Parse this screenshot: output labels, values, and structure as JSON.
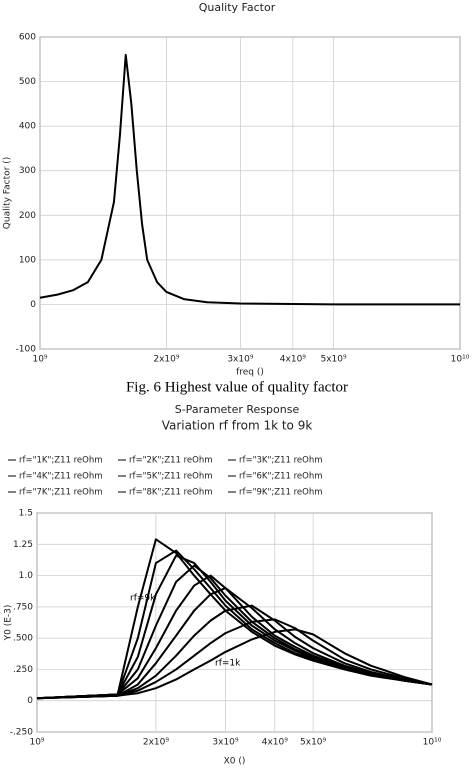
{
  "caption": "Fig. 6   Highest value of quality factor",
  "chart_data": [
    {
      "type": "line",
      "title": "Quality Factor",
      "xlabel": "freq ()",
      "ylabel": "Quality Factor ()",
      "xscale": "log",
      "grid": true,
      "color": "#000000",
      "x": [
        1000000000,
        1100000000,
        1200000000,
        1300000000,
        1400000000,
        1500000000,
        1550000000,
        1600000000,
        1650000000,
        1700000000,
        1750000000,
        1800000000,
        1900000000,
        2000000000,
        2200000000,
        2500000000,
        3000000000,
        4000000000,
        5000000000,
        7000000000,
        10000000000
      ],
      "values": [
        15,
        22,
        32,
        50,
        100,
        230,
        380,
        560,
        450,
        300,
        180,
        100,
        50,
        28,
        12,
        5,
        2,
        1,
        0,
        0,
        0
      ],
      "xlim": [
        1000000000,
        10000000000
      ],
      "xticks": [
        {
          "value": 1000000000,
          "label": "10⁹"
        },
        {
          "value": 2000000000,
          "label": "2x10⁹"
        },
        {
          "value": 3000000000,
          "label": "3x10⁹"
        },
        {
          "value": 4000000000,
          "label": "4x10⁹"
        },
        {
          "value": 5000000000,
          "label": "5x10⁹"
        },
        {
          "value": 10000000000,
          "label": "10¹⁰"
        }
      ],
      "ylim": [
        -100,
        600
      ],
      "yticks": [
        -100,
        0,
        100,
        200,
        300,
        400,
        500,
        600
      ]
    },
    {
      "type": "line",
      "title": "S-Parameter Response",
      "subtitle": "Variation rf from 1k to 9k",
      "xlabel": "X0 ()",
      "ylabel": "Y0 (E-3)",
      "xscale": "log",
      "grid": true,
      "annotations": [
        "rf=9k",
        "rf=1k"
      ],
      "x": [
        1000000000,
        1600000000,
        1800000000,
        2000000000,
        2250000000,
        2500000000,
        2750000000,
        3000000000,
        3500000000,
        4000000000,
        4500000000,
        5000000000,
        6000000000,
        7000000000,
        8500000000,
        10000000000
      ],
      "series": [
        {
          "name": "rf=\"1K\";Z11 reOhm",
          "color": "#000000",
          "values": [
            0.02,
            0.04,
            0.06,
            0.1,
            0.17,
            0.25,
            0.32,
            0.39,
            0.49,
            0.55,
            0.57,
            0.53,
            0.38,
            0.28,
            0.19,
            0.13
          ]
        },
        {
          "name": "rf=\"2K\";Z11 reOhm",
          "color": "#000000",
          "values": [
            0.02,
            0.04,
            0.08,
            0.15,
            0.25,
            0.36,
            0.46,
            0.54,
            0.63,
            0.65,
            0.58,
            0.48,
            0.33,
            0.25,
            0.18,
            0.13
          ]
        },
        {
          "name": "rf=\"3K\";Z11 reOhm",
          "color": "#000000",
          "values": [
            0.02,
            0.04,
            0.1,
            0.2,
            0.36,
            0.52,
            0.64,
            0.72,
            0.76,
            0.64,
            0.51,
            0.42,
            0.3,
            0.23,
            0.17,
            0.13
          ]
        },
        {
          "name": "rf=\"4K\";Z11 reOhm",
          "color": "#000000",
          "values": [
            0.02,
            0.04,
            0.13,
            0.3,
            0.52,
            0.72,
            0.85,
            0.9,
            0.74,
            0.57,
            0.46,
            0.38,
            0.28,
            0.22,
            0.17,
            0.13
          ]
        },
        {
          "name": "rf=\"5K\";Z11 reOhm",
          "color": "#000000",
          "values": [
            0.02,
            0.05,
            0.18,
            0.42,
            0.72,
            0.92,
            1.0,
            0.9,
            0.67,
            0.52,
            0.43,
            0.36,
            0.27,
            0.22,
            0.16,
            0.13
          ]
        },
        {
          "name": "rf=\"6K\";Z11 reOhm",
          "color": "#000000",
          "values": [
            0.02,
            0.05,
            0.25,
            0.6,
            0.95,
            1.08,
            0.98,
            0.84,
            0.63,
            0.5,
            0.41,
            0.35,
            0.27,
            0.21,
            0.16,
            0.13
          ]
        },
        {
          "name": "rf=\"7K\";Z11 reOhm",
          "color": "#000000",
          "values": [
            0.02,
            0.05,
            0.35,
            0.85,
            1.16,
            1.1,
            0.95,
            0.8,
            0.6,
            0.48,
            0.4,
            0.34,
            0.26,
            0.21,
            0.16,
            0.13
          ]
        },
        {
          "name": "rf=\"8K\";Z11 reOhm",
          "color": "#000000",
          "values": [
            0.02,
            0.05,
            0.5,
            1.1,
            1.2,
            1.05,
            0.9,
            0.76,
            0.57,
            0.46,
            0.38,
            0.33,
            0.26,
            0.21,
            0.16,
            0.13
          ]
        },
        {
          "name": "rf=\"9K\";Z11 reOhm",
          "color": "#000000",
          "values": [
            0.02,
            0.05,
            0.75,
            1.29,
            1.18,
            1.0,
            0.85,
            0.72,
            0.55,
            0.44,
            0.37,
            0.32,
            0.25,
            0.2,
            0.16,
            0.13
          ]
        }
      ],
      "xlim": [
        1000000000,
        10000000000
      ],
      "xticks": [
        {
          "value": 1000000000,
          "label": "10⁹"
        },
        {
          "value": 2000000000,
          "label": "2x10⁹"
        },
        {
          "value": 3000000000,
          "label": "3x10⁹"
        },
        {
          "value": 4000000000,
          "label": "4x10⁹"
        },
        {
          "value": 5000000000,
          "label": "5x10⁹"
        },
        {
          "value": 10000000000,
          "label": "10¹⁰"
        }
      ],
      "ylim": [
        -0.25,
        1.5
      ],
      "yticks": [
        {
          "value": -0.25,
          "label": "-.250"
        },
        0,
        {
          "value": 0.25,
          "label": ".250"
        },
        {
          "value": 0.5,
          "label": ".500"
        },
        {
          "value": 0.75,
          "label": ".750"
        },
        {
          "value": 1,
          "label": "1.0"
        },
        {
          "value": 1.25,
          "label": "1.25"
        },
        {
          "value": 1.5,
          "label": "1.5"
        }
      ]
    }
  ]
}
